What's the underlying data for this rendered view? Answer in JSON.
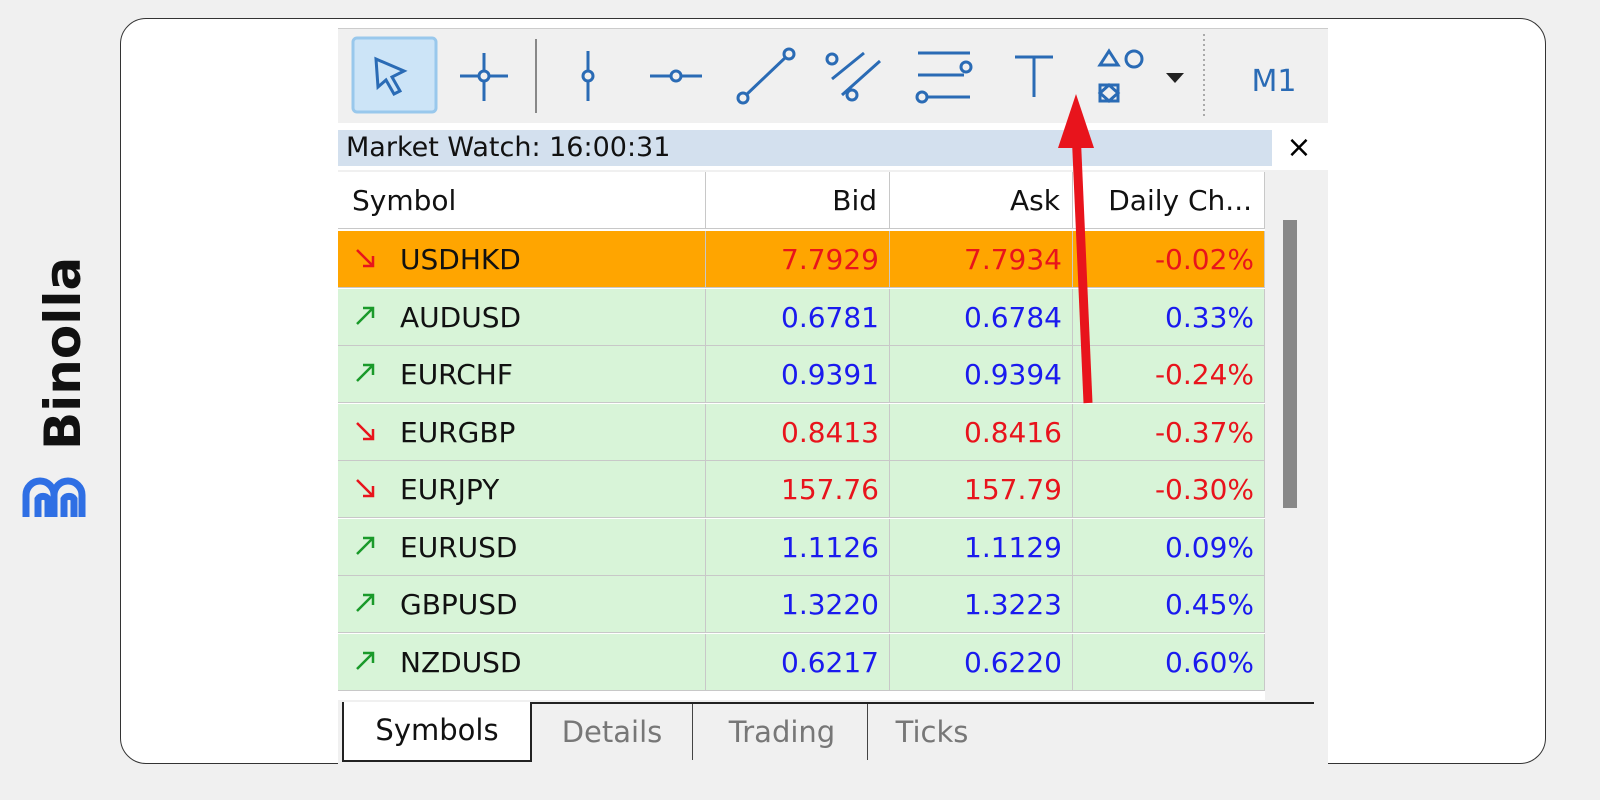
{
  "brand": "Binolla",
  "toolbar": {
    "timeframe": "M1"
  },
  "market_watch": {
    "title": "Market Watch: 16:00:31",
    "columns": [
      "Symbol",
      "Bid",
      "Ask",
      "Daily Ch..."
    ],
    "rows": [
      {
        "symbol": "USDHKD",
        "bid": "7.7929",
        "ask": "7.7934",
        "change": "-0.02%",
        "direction": "down"
      },
      {
        "symbol": "AUDUSD",
        "bid": "0.6781",
        "ask": "0.6784",
        "change": "0.33%",
        "direction": "up"
      },
      {
        "symbol": "EURCHF",
        "bid": "0.9391",
        "ask": "0.9394",
        "change": "-0.24%",
        "direction": "up"
      },
      {
        "symbol": "EURGBP",
        "bid": "0.8413",
        "ask": "0.8416",
        "change": "-0.37%",
        "direction": "down"
      },
      {
        "symbol": "EURJPY",
        "bid": "157.76",
        "ask": "157.79",
        "change": "-0.30%",
        "direction": "down"
      },
      {
        "symbol": "EURUSD",
        "bid": "1.1126",
        "ask": "1.1129",
        "change": "0.09%",
        "direction": "up"
      },
      {
        "symbol": "GBPUSD",
        "bid": "1.3220",
        "ask": "1.3223",
        "change": "0.45%",
        "direction": "up"
      },
      {
        "symbol": "NZDUSD",
        "bid": "0.6217",
        "ask": "0.6220",
        "change": "0.60%",
        "direction": "up"
      }
    ],
    "tabs": [
      "Symbols",
      "Details",
      "Trading",
      "Ticks"
    ]
  }
}
